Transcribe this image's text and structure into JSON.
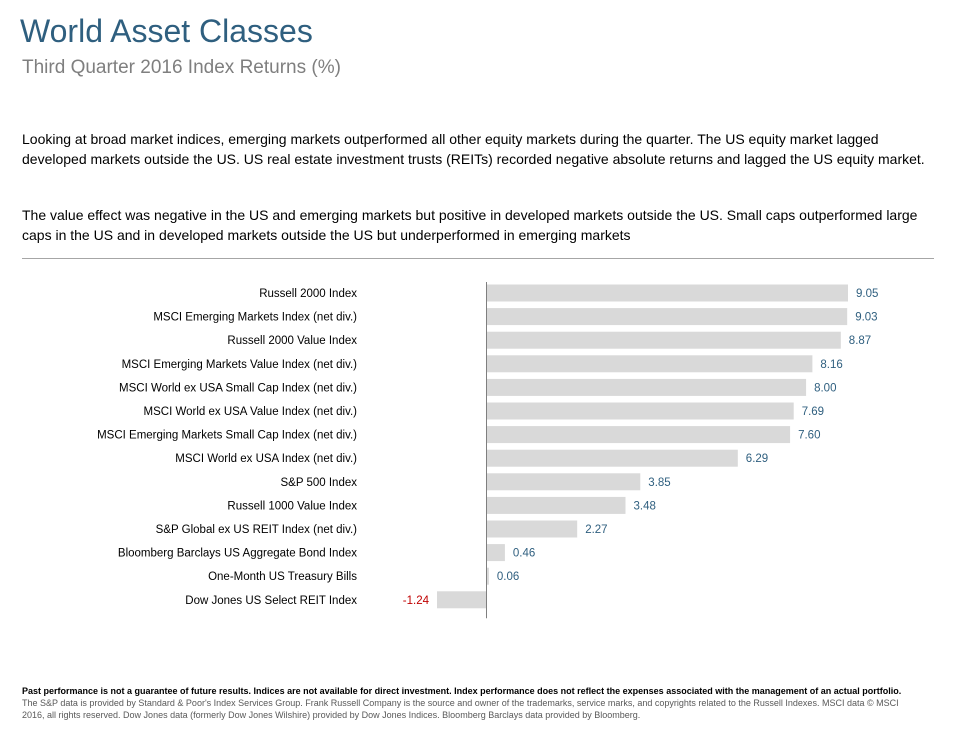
{
  "header": {
    "title": "World Asset Classes",
    "subtitle": "Third Quarter 2016 Index Returns (%)"
  },
  "commentary": {
    "paragraph1": "Looking at broad market indices, emerging markets outperformed all other equity markets during the quarter. The US equity market lagged developed markets outside the US. US real estate investment trusts (REITs) recorded negative absolute returns and lagged the US equity market.",
    "paragraph2": "The value effect was negative in the US and emerging markets but positive in developed markets outside the US. Small caps outperformed large caps in the US and in developed markets outside the US but underperformed in emerging markets"
  },
  "chart_data": {
    "type": "bar",
    "orientation": "horizontal",
    "categories": [
      "Russell 2000 Index",
      "MSCI Emerging Markets Index (net div.)",
      "Russell 2000 Value Index",
      "MSCI Emerging Markets Value Index (net div.)",
      "MSCI World ex USA Small Cap Index (net div.)",
      "MSCI World ex USA Value Index (net div.)",
      "MSCI Emerging Markets Small Cap Index (net div.)",
      "MSCI World ex USA Index (net div.)",
      "S&P 500 Index",
      "Russell 1000 Value Index",
      "S&P Global ex US REIT Index (net div.)",
      "Bloomberg Barclays US Aggregate Bond Index",
      "One-Month US Treasury Bills",
      "Dow Jones US Select REIT Index"
    ],
    "values": [
      9.05,
      9.03,
      8.87,
      8.16,
      8.0,
      7.69,
      7.6,
      6.29,
      3.85,
      3.48,
      2.27,
      0.46,
      0.06,
      -1.24
    ],
    "value_labels": [
      "9.05",
      "9.03",
      "8.87",
      "8.16",
      "8.00",
      "7.69",
      "7.60",
      "6.29",
      "3.85",
      "3.48",
      "2.27",
      "0.46",
      "0.06",
      "-1.24"
    ],
    "title": "",
    "xlabel": "",
    "ylabel": "",
    "xlim": [
      -1.24,
      9.05
    ],
    "grid": false,
    "legend": "none",
    "colors": {
      "bar": "#d9d9d9",
      "positive_label": "#2f5f7f",
      "negative_label": "#c00000",
      "axis": "#7f7f7f",
      "category_label": "#000000"
    }
  },
  "footer": {
    "disclaimer_bold": "Past performance is not a guarantee of future results. Indices are not available for direct investment. Index performance does not reflect the expenses associated with the management of an actual portfolio.",
    "disclaimer_text": "The S&P data is provided by Standard & Poor's Index Services Group. Frank Russell Company is the source and owner of the trademarks, service marks, and copyrights related to the Russell Indexes. MSCI data © MSCI 2016, all rights reserved. Dow Jones data (formerly Dow Jones Wilshire) provided by Dow Jones Indices. Bloomberg Barclays data provided by Bloomberg."
  }
}
